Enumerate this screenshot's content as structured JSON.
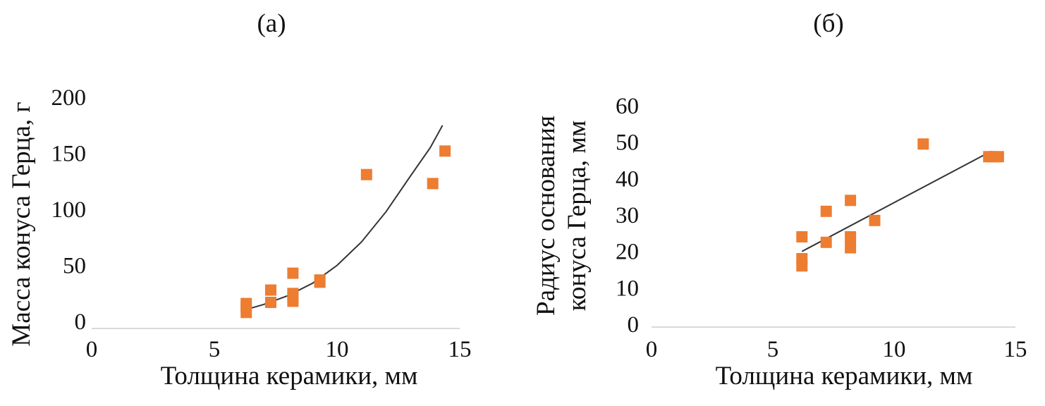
{
  "chart_data": [
    {
      "panel_label": "(а)",
      "type": "scatter",
      "xlabel": "Толщина керамики, мм",
      "ylabel": "Масса конуса Герца, г",
      "xlim": [
        0,
        15
      ],
      "ylim": [
        0,
        200
      ],
      "xticks": [
        "0",
        "5",
        "10",
        "15"
      ],
      "yticks": [
        "0",
        "50",
        "100",
        "150",
        "200"
      ],
      "marker_color": "#ED7D31",
      "trendline_color": "#333333",
      "grid": false,
      "points": [
        {
          "x": 6.3,
          "y": 8
        },
        {
          "x": 6.3,
          "y": 13
        },
        {
          "x": 6.3,
          "y": 16
        },
        {
          "x": 7.3,
          "y": 17
        },
        {
          "x": 7.3,
          "y": 28
        },
        {
          "x": 8.2,
          "y": 18
        },
        {
          "x": 8.2,
          "y": 22
        },
        {
          "x": 8.2,
          "y": 25
        },
        {
          "x": 8.2,
          "y": 43
        },
        {
          "x": 9.3,
          "y": 37
        },
        {
          "x": 9.3,
          "y": 35
        },
        {
          "x": 11.2,
          "y": 131
        },
        {
          "x": 13.9,
          "y": 123
        },
        {
          "x": 14.4,
          "y": 152
        }
      ],
      "trendline": {
        "kind": "power",
        "x": [
          6.2,
          7.0,
          8.0,
          9.0,
          10.0,
          11.0,
          12.0,
          13.0,
          13.8,
          14.3
        ],
        "y": [
          10,
          15,
          23,
          34,
          50,
          71,
          98,
          130,
          155,
          175
        ]
      }
    },
    {
      "panel_label": "(б)",
      "type": "scatter",
      "xlabel": "Толщина керамики, мм",
      "ylabel_lines": [
        "Радиус основания",
        "конуса Герца, мм"
      ],
      "xlim": [
        0,
        15
      ],
      "ylim": [
        0,
        60
      ],
      "xticks": [
        "0",
        "5",
        "10",
        "15"
      ],
      "yticks": [
        "0",
        "10",
        "20",
        "30",
        "40",
        "50",
        "60"
      ],
      "marker_color": "#ED7D31",
      "trendline_color": "#333333",
      "grid": false,
      "points": [
        {
          "x": 6.2,
          "y": 16
        },
        {
          "x": 6.2,
          "y": 18
        },
        {
          "x": 6.2,
          "y": 24
        },
        {
          "x": 7.2,
          "y": 22.5
        },
        {
          "x": 7.2,
          "y": 31
        },
        {
          "x": 8.2,
          "y": 21
        },
        {
          "x": 8.2,
          "y": 24
        },
        {
          "x": 8.2,
          "y": 34
        },
        {
          "x": 9.2,
          "y": 28.5
        },
        {
          "x": 11.2,
          "y": 49.5
        },
        {
          "x": 13.9,
          "y": 46
        },
        {
          "x": 14.1,
          "y": 46
        },
        {
          "x": 14.3,
          "y": 46
        }
      ],
      "trendline": {
        "kind": "linear",
        "x": [
          6.2,
          14.0
        ],
        "y": [
          20,
          47.5
        ]
      }
    }
  ]
}
